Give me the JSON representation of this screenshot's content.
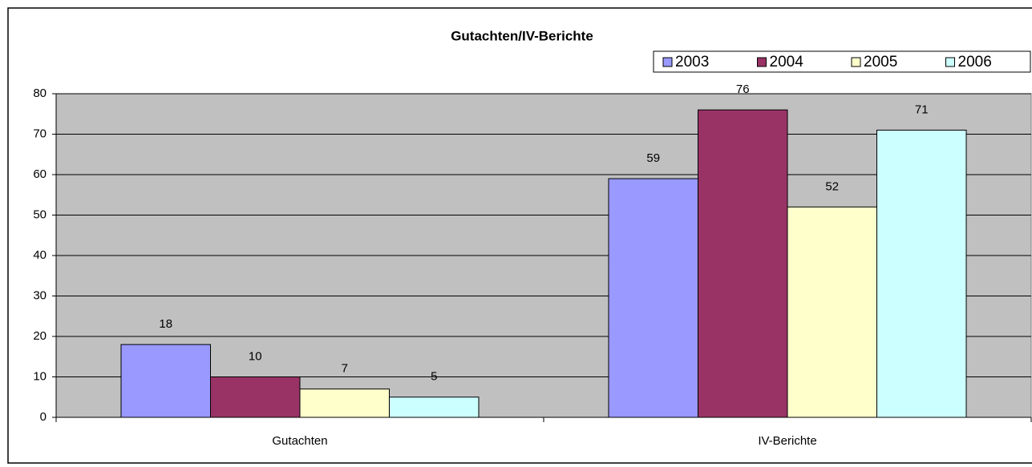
{
  "chart_data": {
    "type": "bar",
    "title": "Gutachten/IV-Berichte",
    "categories": [
      "Gutachten",
      "IV-Berichte"
    ],
    "series": [
      {
        "name": "2003",
        "color": "#9999ff",
        "values": [
          18,
          59
        ]
      },
      {
        "name": "2004",
        "color": "#993366",
        "values": [
          10,
          76
        ]
      },
      {
        "name": "2005",
        "color": "#ffffcc",
        "values": [
          7,
          52
        ]
      },
      {
        "name": "2006",
        "color": "#ccffff",
        "values": [
          5,
          71
        ]
      }
    ],
    "ylim": [
      0,
      80
    ],
    "yticks": [
      0,
      10,
      20,
      30,
      40,
      50,
      60,
      70,
      80
    ],
    "grid": true,
    "legend": "top-right",
    "plot_background": "#c0c0c0"
  }
}
